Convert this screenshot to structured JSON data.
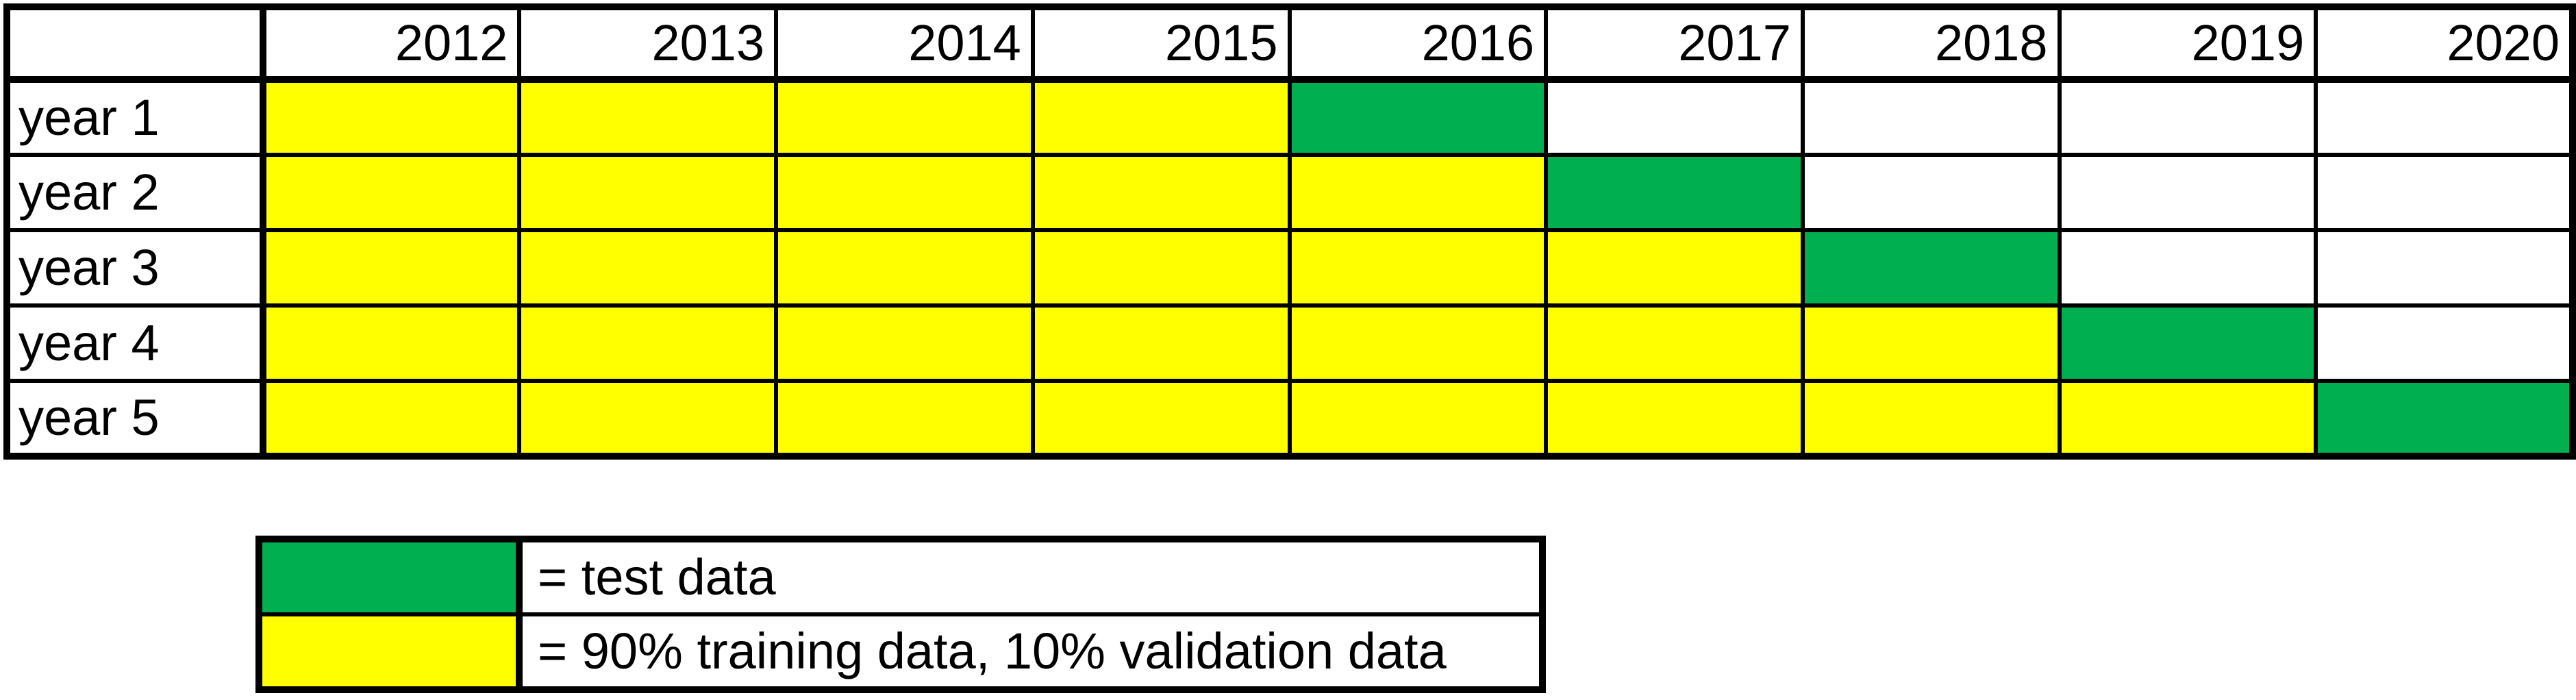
{
  "columns": [
    "2012",
    "2013",
    "2014",
    "2015",
    "2016",
    "2017",
    "2018",
    "2019",
    "2020"
  ],
  "rows": [
    {
      "label": "year 1",
      "cells": [
        "train",
        "train",
        "train",
        "train",
        "test",
        "empty",
        "empty",
        "empty",
        "empty"
      ]
    },
    {
      "label": "year 2",
      "cells": [
        "train",
        "train",
        "train",
        "train",
        "train",
        "test",
        "empty",
        "empty",
        "empty"
      ]
    },
    {
      "label": "year 3",
      "cells": [
        "train",
        "train",
        "train",
        "train",
        "train",
        "train",
        "test",
        "empty",
        "empty"
      ]
    },
    {
      "label": "year 4",
      "cells": [
        "train",
        "train",
        "train",
        "train",
        "train",
        "train",
        "train",
        "test",
        "empty"
      ]
    },
    {
      "label": "year 5",
      "cells": [
        "train",
        "train",
        "train",
        "train",
        "train",
        "train",
        "train",
        "train",
        "test"
      ]
    }
  ],
  "colors": {
    "test": "#00b050",
    "train": "#ffff00",
    "empty": "#ffffff",
    "border": "#000000"
  },
  "legend": [
    {
      "key": "test",
      "text": "= test data"
    },
    {
      "key": "train",
      "text": "= 90% training data, 10% validation data"
    }
  ]
}
